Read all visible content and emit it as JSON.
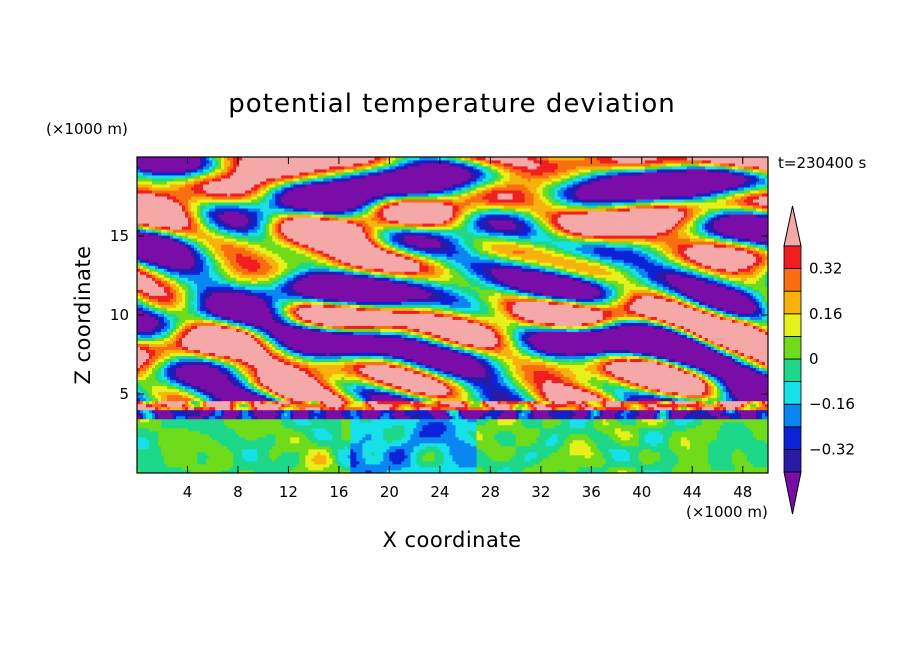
{
  "chart_data": {
    "type": "heatmap",
    "title": "potential temperature deviation",
    "xlabel": "X coordinate",
    "ylabel": "Z coordinate",
    "x_units": "(×1000 m)",
    "y_units": "(×1000 m)",
    "time_label": "t=230400 s",
    "xlim": [
      0,
      50
    ],
    "ylim": [
      0,
      20
    ],
    "x_ticks": [
      4,
      8,
      12,
      16,
      20,
      24,
      28,
      32,
      36,
      40,
      44,
      48
    ],
    "y_ticks": [
      5,
      10,
      15
    ],
    "colorbar": {
      "levels": [
        -0.4,
        -0.32,
        -0.24,
        -0.16,
        -0.08,
        0,
        0.08,
        0.16,
        0.24,
        0.32,
        0.4
      ],
      "labels": [
        {
          "value": 0.32,
          "text": "0.32"
        },
        {
          "value": 0.16,
          "text": "0.16"
        },
        {
          "value": 0,
          "text": "0"
        },
        {
          "value": -0.16,
          "text": "−0.16"
        },
        {
          "value": -0.32,
          "text": "−0.32"
        }
      ],
      "colors": [
        "#7a0da8",
        "#2a1aa6",
        "#0b22d8",
        "#0a86f2",
        "#16e0e8",
        "#1ed88a",
        "#6edc1a",
        "#e8f01a",
        "#f8b20c",
        "#f86e10",
        "#f01e1e",
        "#f4a8a8"
      ],
      "extend": "both"
    },
    "field_description": "layered turbulent potential temperature deviation; stable warm/cool layers aloft, convective mixed layer below z=4000 m"
  }
}
